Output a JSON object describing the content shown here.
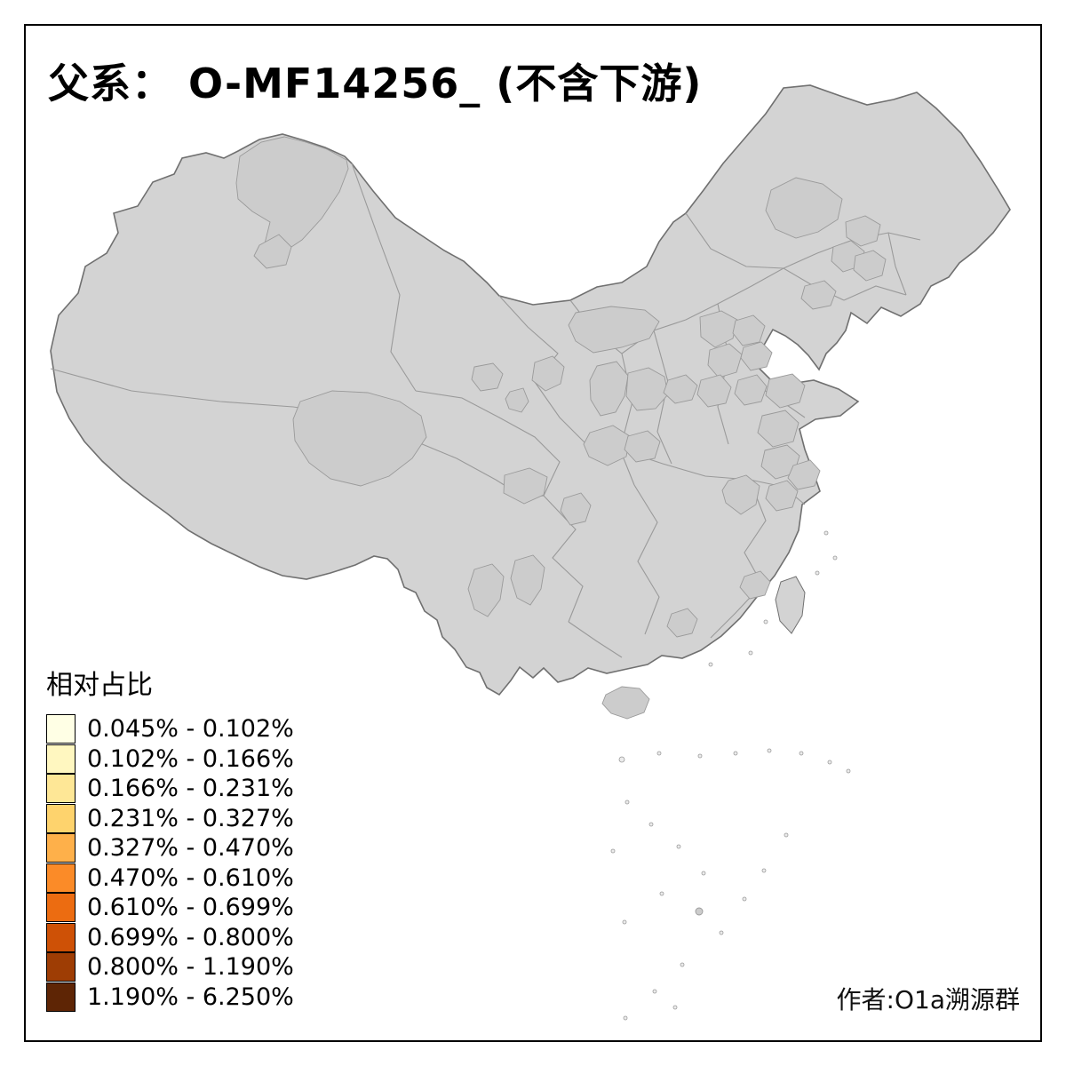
{
  "title": "父系： O-MF14256_ (不含下游)",
  "author": "作者:O1a溯源群",
  "legend": {
    "title": "相对占比",
    "items": [
      {
        "label": "0.045% - 0.102%",
        "color": "#FFFFE5"
      },
      {
        "label": "0.102% - 0.166%",
        "color": "#FFF7C0"
      },
      {
        "label": "0.166% - 0.231%",
        "color": "#FEE796"
      },
      {
        "label": "0.231% - 0.327%",
        "color": "#FED36D"
      },
      {
        "label": "0.327% - 0.470%",
        "color": "#FEB04A"
      },
      {
        "label": "0.470% - 0.610%",
        "color": "#FB8B28"
      },
      {
        "label": "0.610% - 0.699%",
        "color": "#EC6C11"
      },
      {
        "label": "0.699% - 0.800%",
        "color": "#CE5106"
      },
      {
        "label": "0.800% - 1.190%",
        "color": "#9E3D04"
      },
      {
        "label": "1.190% - 6.250%",
        "color": "#5E2505"
      }
    ]
  },
  "map": {
    "base_fill": "#D3D3D3",
    "outline_color": "#707070",
    "boundary_color": "#9A9A9A",
    "regions": [
      {
        "id": "north-xinjiang-altay",
        "class": 7
      },
      {
        "id": "altay-south",
        "class": 1
      },
      {
        "id": "south-qinghai-yushu",
        "class": 9
      },
      {
        "id": "inner-mongolia-west",
        "class": 5
      },
      {
        "id": "inner-mongolia-east",
        "class": 4
      },
      {
        "id": "northeast-a",
        "class": 0
      },
      {
        "id": "northeast-b",
        "class": 0
      },
      {
        "id": "northeast-c",
        "class": 1
      },
      {
        "id": "hexi-corridor",
        "class": 3
      },
      {
        "id": "lanzhou",
        "class": 6
      },
      {
        "id": "gansu-south",
        "class": 8
      },
      {
        "id": "gansu-dot",
        "class": 7
      },
      {
        "id": "wuwei",
        "class": 4
      },
      {
        "id": "xining",
        "class": 4
      },
      {
        "id": "ningxia",
        "class": 3
      },
      {
        "id": "north-shanxi",
        "class": 1
      },
      {
        "id": "central-shanxi",
        "class": 0
      },
      {
        "id": "north-hebei",
        "class": 2
      },
      {
        "id": "beijing-area",
        "class": 0
      },
      {
        "id": "south-shanxi",
        "class": 2
      },
      {
        "id": "south-hebei",
        "class": 1
      },
      {
        "id": "north-shandong",
        "class": 1
      },
      {
        "id": "shandong-south",
        "class": 3
      },
      {
        "id": "west-henan",
        "class": 4
      },
      {
        "id": "east-henan",
        "class": 3
      },
      {
        "id": "wuhan-area",
        "class": 6
      },
      {
        "id": "anhui-north",
        "class": 1
      },
      {
        "id": "jiangsu-coast",
        "class": 3
      },
      {
        "id": "anhui-south",
        "class": 2
      },
      {
        "id": "north-sichuan",
        "class": 0
      },
      {
        "id": "chengdu-area",
        "class": 1
      },
      {
        "id": "west-yunnan",
        "class": 5
      },
      {
        "id": "central-yunnan",
        "class": 4
      },
      {
        "id": "guangdong-east",
        "class": 3
      },
      {
        "id": "guangxi-east",
        "class": 0
      },
      {
        "id": "hainan",
        "class": 1
      },
      {
        "id": "scs-island",
        "class": 4
      }
    ]
  }
}
